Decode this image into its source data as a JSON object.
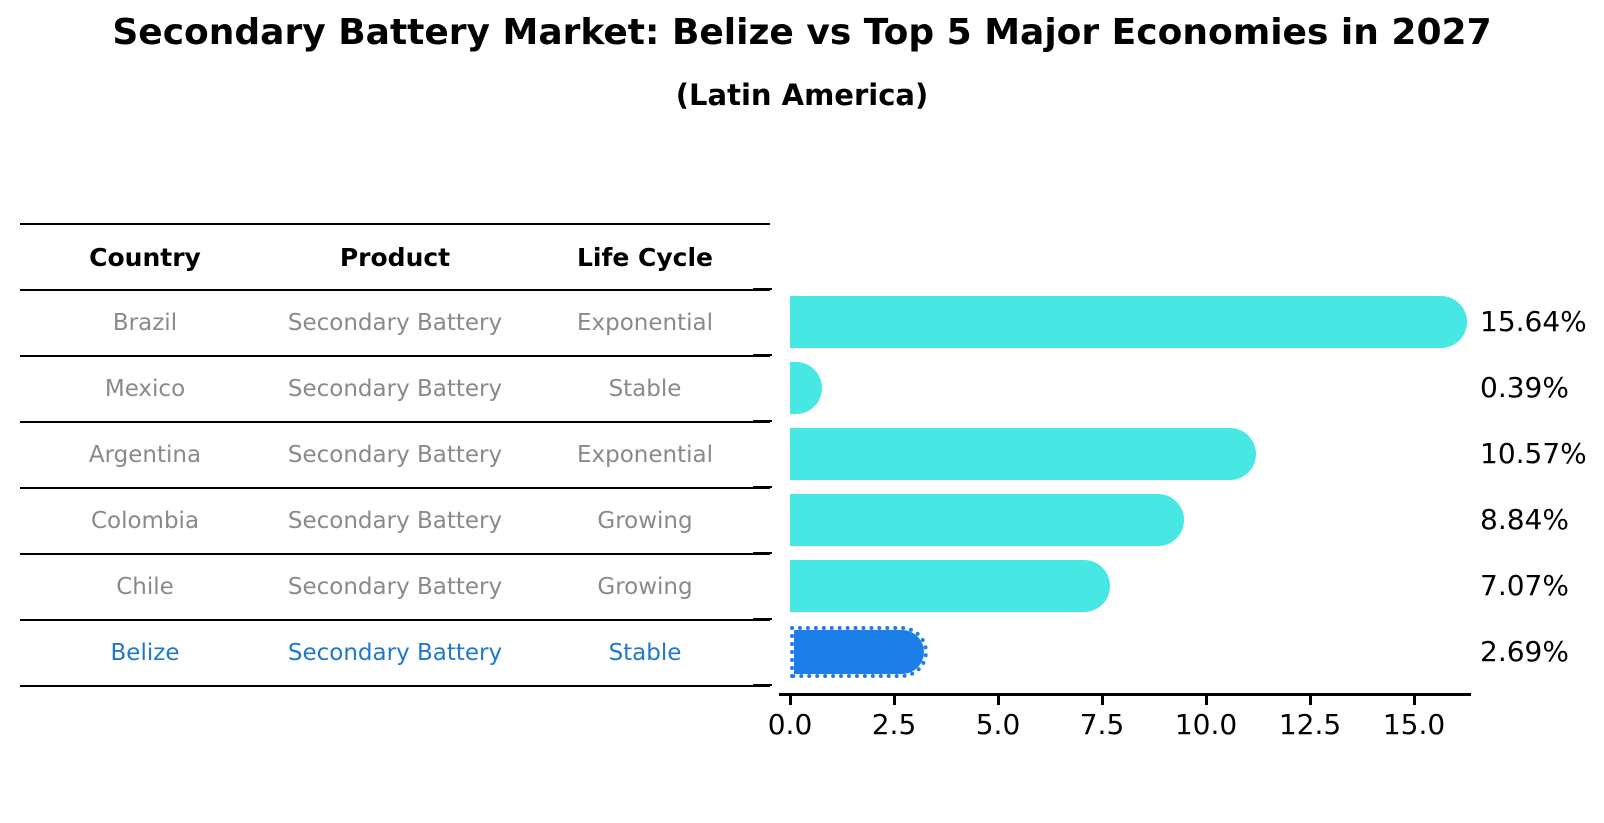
{
  "chart_data": {
    "type": "bar",
    "orientation": "horizontal",
    "title": "Secondary Battery Market: Belize vs Top 5 Major Economies in 2027",
    "subtitle": "(Latin America)",
    "categories": [
      "Brazil",
      "Mexico",
      "Argentina",
      "Colombia",
      "Chile",
      "Belize"
    ],
    "values": [
      15.64,
      0.39,
      10.57,
      8.84,
      7.07,
      2.69
    ],
    "value_labels": [
      "15.64%",
      "0.39%",
      "10.57%",
      "8.84%",
      "7.07%",
      "2.69%"
    ],
    "highlight_index": 5,
    "xlim": [
      0,
      16.5
    ],
    "x_ticks": [
      0.0,
      2.5,
      5.0,
      7.5,
      10.0,
      12.5,
      15.0
    ],
    "x_tick_labels": [
      "0.0",
      "2.5",
      "5.0",
      "7.5",
      "10.0",
      "12.5",
      "15.0"
    ],
    "grid": false,
    "legend": null,
    "colors": {
      "bar": "#47e7e3",
      "highlight_bar": "#1e7ee9",
      "highlight_text": "#1f78cb",
      "table_text": "#8a8a8a",
      "axis": "#000000"
    }
  },
  "table": {
    "headers": [
      "Country",
      "Product",
      "Life Cycle"
    ],
    "rows": [
      {
        "country": "Brazil",
        "product": "Secondary Battery",
        "life_cycle": "Exponential",
        "highlight": false
      },
      {
        "country": "Mexico",
        "product": "Secondary Battery",
        "life_cycle": "Stable",
        "highlight": false
      },
      {
        "country": "Argentina",
        "product": "Secondary Battery",
        "life_cycle": "Exponential",
        "highlight": false
      },
      {
        "country": "Colombia",
        "product": "Secondary Battery",
        "life_cycle": "Growing",
        "highlight": false
      },
      {
        "country": "Chile",
        "product": "Secondary Battery",
        "life_cycle": "Growing",
        "highlight": false
      },
      {
        "country": "Belize",
        "product": "Secondary Battery",
        "life_cycle": "Stable",
        "highlight": true
      }
    ]
  }
}
